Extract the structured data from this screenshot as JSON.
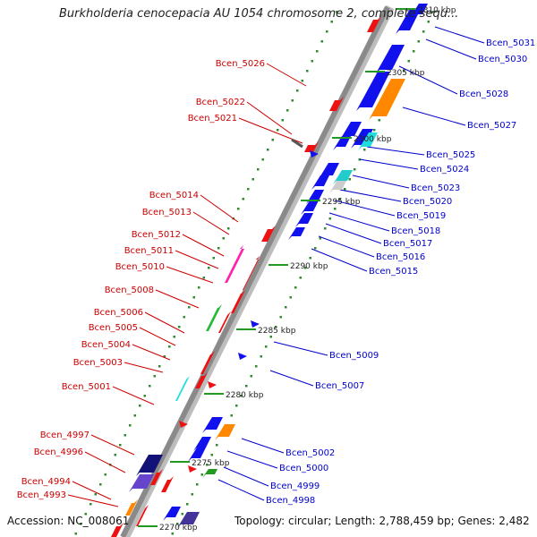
{
  "title": "Burkholderia cenocepacia AU 1054 chromosome 2, complete sequ...",
  "footer": {
    "accession": "Accession: NC_008061",
    "topology": "Topology: circular; Length: 2,788,459 bp; Genes: 2,482"
  },
  "colors": {
    "forward_label": "#cc0000",
    "reverse_label": "#0000cc",
    "backbone": "#999999",
    "tick_green": "#2e8b2e"
  },
  "scale_labels": [
    "2310 kbp",
    "2305 kbp",
    "2300 kbp",
    "2295 kbp",
    "2290 kbp",
    "2285 kbp",
    "2280 kbp",
    "2275 kbp",
    "2270 kbp"
  ],
  "forward_genes": [
    "Bcen_5026",
    "Bcen_5022",
    "Bcen_5021",
    "Bcen_5014",
    "Bcen_5013",
    "Bcen_5012",
    "Bcen_5011",
    "Bcen_5010",
    "Bcen_5008",
    "Bcen_5006",
    "Bcen_5005",
    "Bcen_5004",
    "Bcen_5003",
    "Bcen_5001",
    "Bcen_4997",
    "Bcen_4996",
    "Bcen_4994",
    "Bcen_4993"
  ],
  "reverse_genes": [
    "Bcen_5031",
    "Bcen_5030",
    "Bcen_5028",
    "Bcen_5027",
    "Bcen_5025",
    "Bcen_5024",
    "Bcen_5023",
    "Bcen_5020",
    "Bcen_5019",
    "Bcen_5018",
    "Bcen_5017",
    "Bcen_5016",
    "Bcen_5015",
    "Bcen_5009",
    "Bcen_5007",
    "Bcen_5002",
    "Bcen_5000",
    "Bcen_4999",
    "Bcen_4998"
  ]
}
